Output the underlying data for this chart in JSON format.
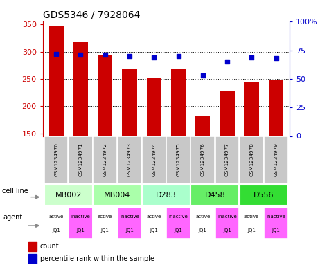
{
  "title": "GDS5346 / 7928064",
  "samples": [
    "GSM1234970",
    "GSM1234971",
    "GSM1234972",
    "GSM1234973",
    "GSM1234974",
    "GSM1234975",
    "GSM1234976",
    "GSM1234977",
    "GSM1234978",
    "GSM1234979"
  ],
  "counts": [
    348,
    318,
    295,
    268,
    251,
    268,
    183,
    228,
    243,
    248
  ],
  "percentile_ranks": [
    72,
    71,
    71,
    70,
    69,
    70,
    53,
    65,
    69,
    68
  ],
  "ylim_left": [
    145,
    355
  ],
  "ylim_right": [
    0,
    100
  ],
  "yticks_left": [
    150,
    200,
    250,
    300,
    350
  ],
  "yticks_right": [
    0,
    25,
    50,
    75,
    100
  ],
  "cell_lines": [
    {
      "label": "MB002",
      "cols": [
        0,
        1
      ],
      "color": "#ccffcc"
    },
    {
      "label": "MB004",
      "cols": [
        2,
        3
      ],
      "color": "#aaffaa"
    },
    {
      "label": "D283",
      "cols": [
        4,
        5
      ],
      "color": "#aaffcc"
    },
    {
      "label": "D458",
      "cols": [
        6,
        7
      ],
      "color": "#66ee66"
    },
    {
      "label": "D556",
      "cols": [
        8,
        9
      ],
      "color": "#33dd33"
    }
  ],
  "agents": [
    "active",
    "inactive",
    "active",
    "inactive",
    "active",
    "inactive",
    "active",
    "inactive",
    "active",
    "inactive"
  ],
  "agent_label2": "JQ1",
  "agent_active_color": "#ffffff",
  "agent_inactive_color": "#ff66ff",
  "bar_color": "#cc0000",
  "dot_color": "#0000cc",
  "grid_color": "#000000",
  "tick_color_left": "#cc0000",
  "tick_color_right": "#0000cc",
  "sample_box_color": "#c8c8c8",
  "legend_bar_label": "count",
  "legend_dot_label": "percentile rank within the sample",
  "cell_line_label": "cell line",
  "agent_label": "agent"
}
